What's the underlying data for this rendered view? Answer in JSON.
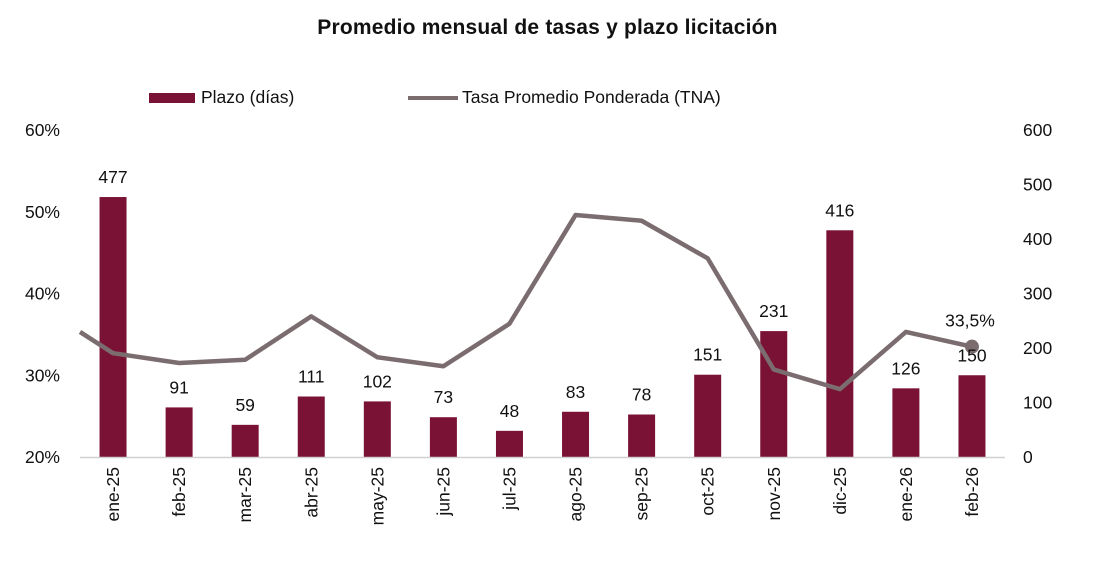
{
  "chart_data": {
    "type": "bar+line",
    "title": "Promedio mensual de tasas y plazo licitación",
    "categories": [
      "ene-25",
      "feb-25",
      "mar-25",
      "abr-25",
      "may-25",
      "jun-25",
      "jul-25",
      "ago-25",
      "sep-25",
      "oct-25",
      "nov-25",
      "dic-25",
      "ene-26",
      "feb-26"
    ],
    "series": [
      {
        "name": "Plazo (días)",
        "type": "bar",
        "axis": "right",
        "color": "#7a1236",
        "values": [
          477,
          91,
          59,
          111,
          102,
          73,
          48,
          83,
          78,
          151,
          231,
          416,
          126,
          150
        ],
        "labels": [
          "477",
          "91",
          "59",
          "111",
          "102",
          "73",
          "48",
          "83",
          "78",
          "151",
          "231",
          "416",
          "126",
          "150"
        ]
      },
      {
        "name": "Tasa Promedio Ponderada (TNA)",
        "type": "line",
        "axis": "left",
        "color": "#7a6c6f",
        "start_value": 35.3,
        "values": [
          32.7,
          31.5,
          31.9,
          37.2,
          32.2,
          31.1,
          36.3,
          49.6,
          48.9,
          44.3,
          30.7,
          28.3,
          35.3,
          33.5
        ],
        "last_label": "33,5%"
      }
    ],
    "y_left": {
      "min": 20,
      "max": 60,
      "ticks": [
        "20%",
        "30%",
        "40%",
        "50%",
        "60%"
      ],
      "tick_values": [
        20,
        30,
        40,
        50,
        60
      ]
    },
    "y_right": {
      "min": 0,
      "max": 600,
      "ticks": [
        "0",
        "100",
        "200",
        "300",
        "400",
        "500",
        "600"
      ],
      "tick_values": [
        0,
        100,
        200,
        300,
        400,
        500,
        600
      ]
    },
    "legend_position": "top",
    "grid": false
  }
}
